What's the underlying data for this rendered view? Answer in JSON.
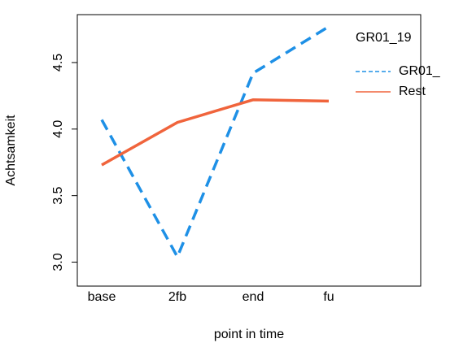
{
  "chart_data": {
    "type": "line",
    "x_label": "point in time",
    "y_label": "Achtsamkeit",
    "categories": [
      "base",
      "2fb",
      "end",
      "fu"
    ],
    "legend_title": "GR01_19",
    "legend": "top-right",
    "series": [
      {
        "name": "GR01_",
        "color": "#1e90e6",
        "dash": true,
        "values": [
          4.07,
          3.04,
          4.42,
          4.77
        ]
      },
      {
        "name": "Rest",
        "color": "#f0643c",
        "dash": false,
        "values": [
          3.73,
          4.05,
          4.22,
          4.21
        ]
      }
    ],
    "ylim": [
      2.82,
      4.86
    ],
    "yticks": [
      {
        "value": 3,
        "label": "3.0"
      },
      3.5,
      {
        "value": 4,
        "label": "4.0"
      },
      4.5
    ]
  }
}
